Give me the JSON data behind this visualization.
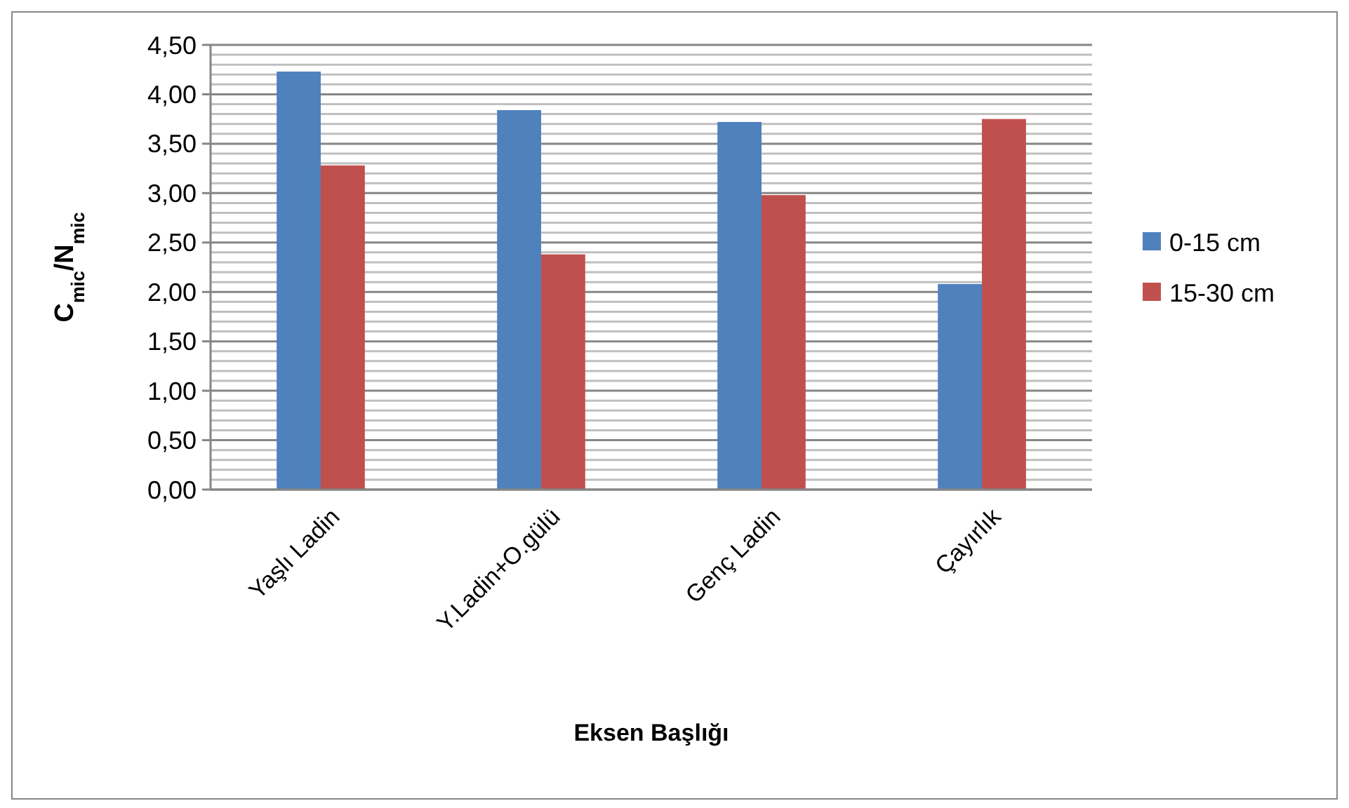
{
  "chart_data": {
    "type": "bar",
    "xlabel": "Eksen Başlığı",
    "ylabel": "C$_{mic}$/N$_{mic}$",
    "categories": [
      "Yaşlı Ladin",
      "Y.Ladin+O.gülü",
      "Genç Ladin",
      "Çayırlık"
    ],
    "series": [
      {
        "name": "0-15 cm",
        "color": "#4f81bd",
        "values": [
          4.23,
          3.84,
          3.72,
          2.08
        ]
      },
      {
        "name": "15-30 cm",
        "color": "#c0504d",
        "values": [
          3.28,
          2.38,
          2.98,
          3.75
        ]
      }
    ],
    "ylim": [
      0,
      4.5
    ],
    "yticks": [
      {
        "value": 0,
        "label": "0,00"
      },
      {
        "value": 0.5,
        "label": "0,50"
      },
      {
        "value": 1,
        "label": "1,00"
      },
      {
        "value": 1.5,
        "label": "1,50"
      },
      {
        "value": 2,
        "label": "2,00"
      },
      {
        "value": 2.5,
        "label": "2,50"
      },
      {
        "value": 3,
        "label": "3,00"
      },
      {
        "value": 3.5,
        "label": "3,50"
      },
      {
        "value": 4,
        "label": "4,00"
      },
      {
        "value": 4.5,
        "label": "4,50"
      }
    ],
    "grid": true,
    "legend": "right"
  }
}
